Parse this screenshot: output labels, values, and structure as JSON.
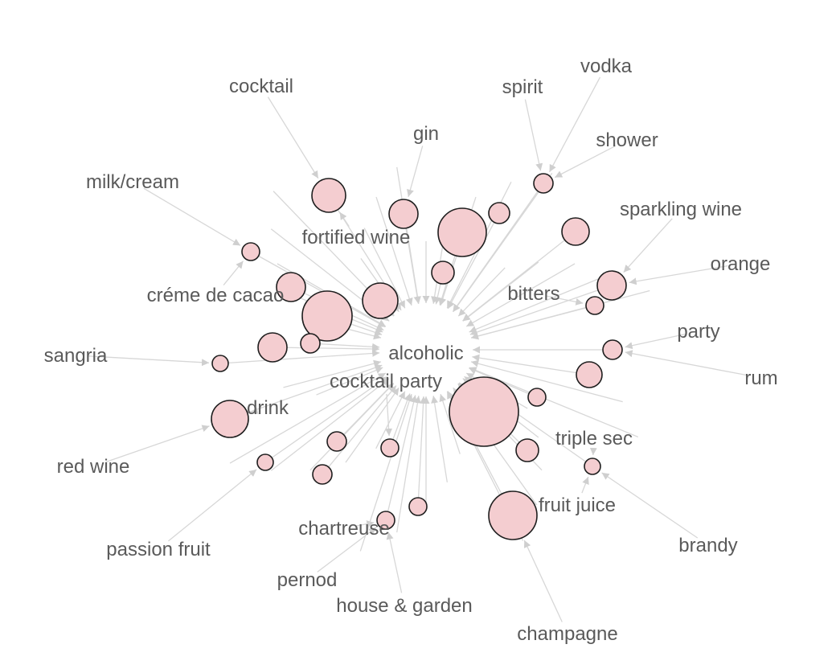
{
  "diagram": {
    "type": "network-graph",
    "center_label": "alcoholic",
    "colors": {
      "node_fill": "#f4cdd0",
      "node_stroke": "#1e1e1e",
      "edge": "#d7d7d7",
      "label": "#5a5a5a"
    },
    "labels": [
      "cocktail",
      "spirit",
      "vodka",
      "gin",
      "shower",
      "milk/cream",
      "sparkling wine",
      "fortified wine",
      "orange",
      "créme de cacao",
      "bitters",
      "party",
      "sangria",
      "alcoholic",
      "cocktail party",
      "rum",
      "drink",
      "triple sec",
      "red wine",
      "fruit juice",
      "brandy",
      "chartreuse",
      "passion fruit",
      "pernod",
      "house & garden",
      "champagne"
    ]
  }
}
